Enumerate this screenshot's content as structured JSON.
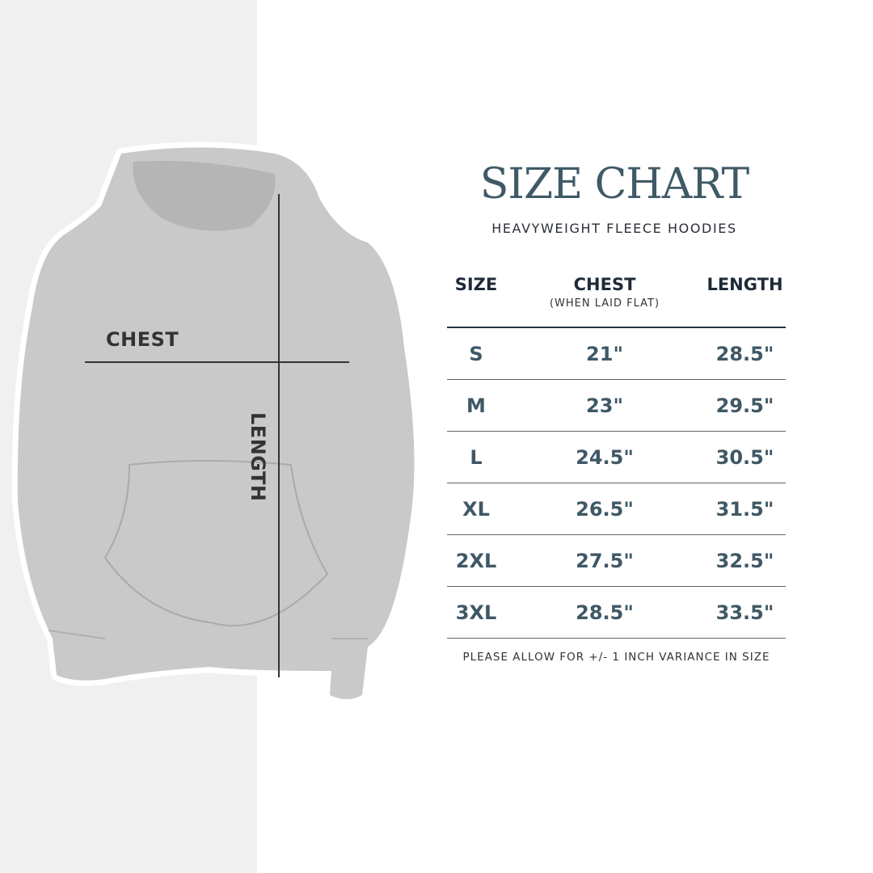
{
  "title": "SIZE CHART",
  "subtitle": "HEAVYWEIGHT FLEECE HOODIES",
  "image_labels": {
    "chest": "CHEST",
    "length": "LENGTH"
  },
  "table": {
    "headers": {
      "size": "SIZE",
      "chest": "CHEST",
      "chest_note": "(WHEN LAID FLAT)",
      "length": "LENGTH"
    },
    "rows": [
      {
        "size": "S",
        "chest": "21\"",
        "length": "28.5\""
      },
      {
        "size": "M",
        "chest": "23\"",
        "length": "29.5\""
      },
      {
        "size": "L",
        "chest": "24.5\"",
        "length": "30.5\""
      },
      {
        "size": "XL",
        "chest": "26.5\"",
        "length": "31.5\""
      },
      {
        "size": "2XL",
        "chest": "27.5\"",
        "length": "32.5\""
      },
      {
        "size": "3XL",
        "chest": "28.5\"",
        "length": "33.5\""
      }
    ]
  },
  "note": "PLEASE ALLOW FOR +/- 1 INCH VARIANCE IN SIZE",
  "colors": {
    "title": "#3f5a66",
    "header": "#1f2a38",
    "values": "#3f5866",
    "panel": "#f0f0f0",
    "hoodie": "#c9c9c9"
  }
}
